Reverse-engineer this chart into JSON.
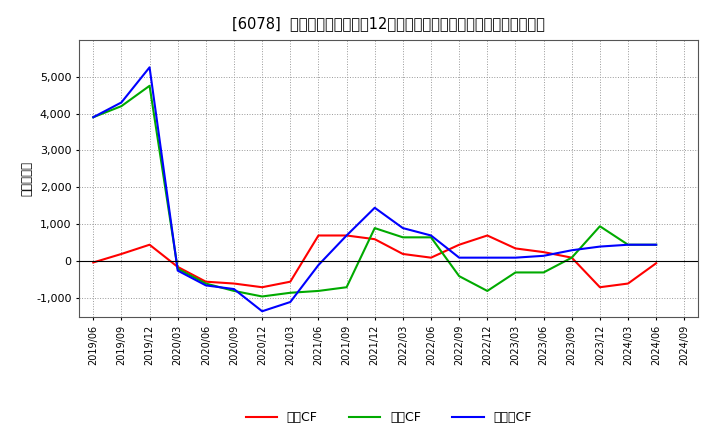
{
  "title": "[6078]  キャッシュフローの12か月移動合計の対前年同期増減額の推移",
  "ylabel": "（百万円）",
  "x_labels": [
    "2019/06",
    "2019/09",
    "2019/12",
    "2020/03",
    "2020/06",
    "2020/09",
    "2020/12",
    "2021/03",
    "2021/06",
    "2021/09",
    "2021/12",
    "2022/03",
    "2022/06",
    "2022/09",
    "2022/12",
    "2023/03",
    "2023/06",
    "2023/09",
    "2023/12",
    "2024/03",
    "2024/06",
    "2024/09"
  ],
  "eigyo_cf": [
    -30,
    200,
    450,
    -150,
    -550,
    -600,
    -700,
    -550,
    700,
    700,
    600,
    200,
    100,
    450,
    700,
    350,
    250,
    100,
    -700,
    -600,
    -50,
    null
  ],
  "toshi_cf": [
    3900,
    4200,
    4750,
    -200,
    -600,
    -800,
    -950,
    -850,
    -800,
    -700,
    900,
    650,
    650,
    -400,
    -800,
    -300,
    -300,
    100,
    950,
    450,
    450,
    null
  ],
  "free_cf": [
    3900,
    4300,
    5250,
    -250,
    -650,
    -750,
    -1350,
    -1100,
    -100,
    700,
    1450,
    900,
    700,
    100,
    100,
    100,
    150,
    300,
    400,
    450,
    450,
    null
  ],
  "eigyo_color": "#ff0000",
  "toshi_color": "#00aa00",
  "free_color": "#0000ff",
  "ylim": [
    -1500,
    6000
  ],
  "yticks": [
    -1000,
    0,
    1000,
    2000,
    3000,
    4000,
    5000
  ],
  "background_color": "#ffffff",
  "grid_color": "#aaaaaa",
  "legend_labels": [
    "営業CF",
    "投資CF",
    "フリーCF"
  ]
}
